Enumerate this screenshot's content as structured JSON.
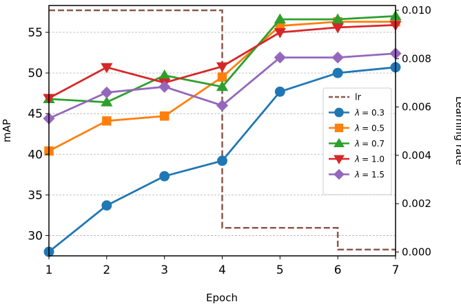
{
  "chart_data": {
    "type": "line",
    "xlabel": "Epoch",
    "ylabel": "mAP",
    "y2label": "Learning rate",
    "x": [
      1,
      2,
      3,
      4,
      5,
      6,
      7
    ],
    "xlim": [
      1,
      7
    ],
    "ylim": [
      27.5,
      58.3
    ],
    "y2lim": [
      -0.00016,
      0.0102
    ],
    "xticks": [
      "1",
      "2",
      "3",
      "4",
      "5",
      "6",
      "7"
    ],
    "yticks": [
      30,
      35,
      40,
      45,
      50,
      55
    ],
    "ytick_labels": [
      "30",
      "35",
      "40",
      "45",
      "50",
      "55"
    ],
    "y2ticks": [
      0,
      0.002,
      0.004,
      0.006,
      0.008,
      0.01
    ],
    "y2tick_labels": [
      "0.000",
      "0.002",
      "0.004",
      "0.006",
      "0.008",
      "0.010"
    ],
    "grid": "horizontal dashed",
    "legend_position": "center-right",
    "series": [
      {
        "name": "λ = 0.3",
        "legend_prefix": "λ",
        "legend_value": "= 0.3",
        "color": "#1f77b4",
        "marker": "circle",
        "values": [
          28.0,
          33.7,
          37.3,
          39.2,
          47.7,
          50.0,
          50.7
        ]
      },
      {
        "name": "λ = 0.5",
        "legend_prefix": "λ",
        "legend_value": "= 0.5",
        "color": "#ff7f0e",
        "marker": "square",
        "values": [
          40.4,
          44.1,
          44.7,
          49.5,
          55.8,
          56.3,
          56.3
        ]
      },
      {
        "name": "λ = 0.7",
        "legend_prefix": "λ",
        "legend_value": "= 0.7",
        "color": "#2ca02c",
        "marker": "triangle-up",
        "values": [
          46.8,
          46.4,
          49.7,
          48.3,
          56.6,
          56.6,
          57.0
        ]
      },
      {
        "name": "λ = 1.0",
        "legend_prefix": "λ",
        "legend_value": "= 1.0",
        "color": "#d62728",
        "marker": "triangle-down",
        "values": [
          46.9,
          50.7,
          48.8,
          50.8,
          55.0,
          55.6,
          55.9
        ]
      },
      {
        "name": "λ = 1.5",
        "legend_prefix": "λ",
        "legend_value": "= 1.5",
        "color": "#9467bd",
        "marker": "diamond",
        "values": [
          44.4,
          47.6,
          48.3,
          46.0,
          51.9,
          51.9,
          52.4
        ]
      }
    ],
    "lr_series": {
      "name": "lr",
      "color": "#8c564b",
      "style": "dashed-step",
      "x": [
        1,
        4,
        4,
        6,
        6,
        7
      ],
      "values": [
        0.01,
        0.01,
        0.001,
        0.001,
        0.0001,
        0.0001
      ]
    }
  }
}
